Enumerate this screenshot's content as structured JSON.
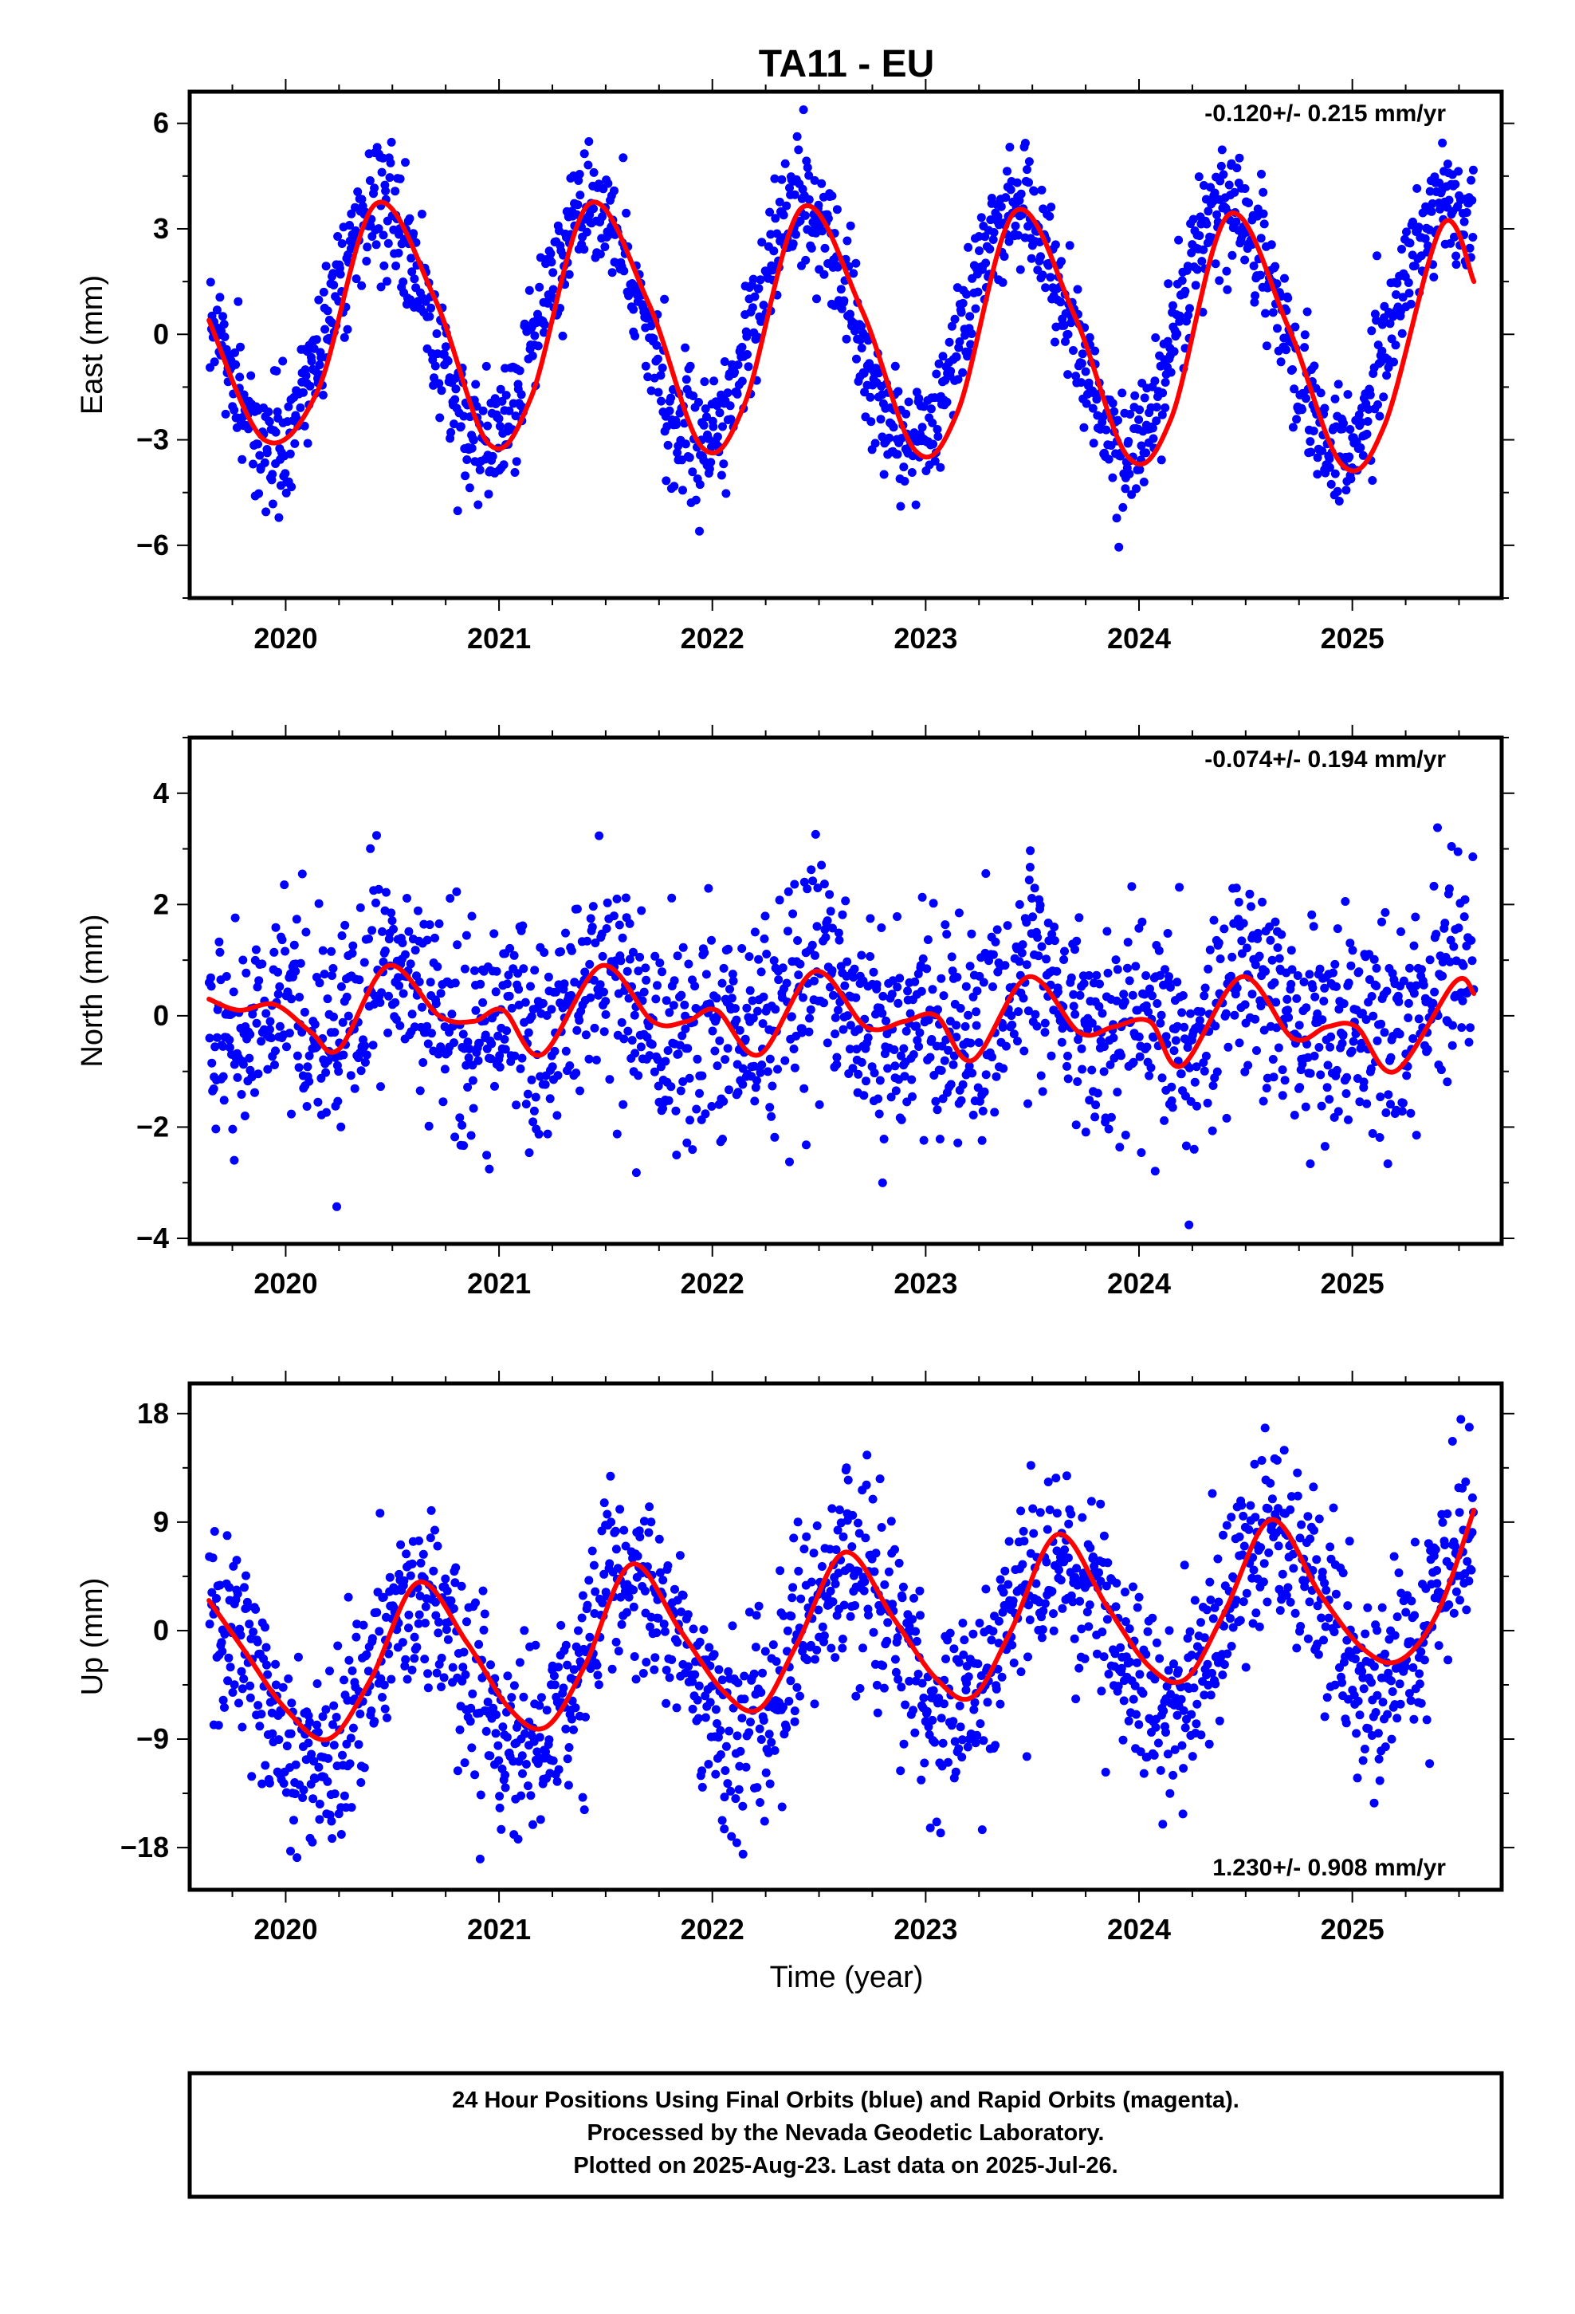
{
  "title": "TA11 - EU",
  "x_label": "Time (year)",
  "footer": [
    "24 Hour Positions Using Final Orbits (blue) and Rapid Orbits (magenta).",
    "Processed by the Nevada Geodetic Laboratory.",
    "Plotted on 2025-Aug-23. Last data on 2025-Jul-26."
  ],
  "colors": {
    "points": "#0000ff",
    "model": "#ff0000",
    "frame": "#000000"
  },
  "chart_data": [
    {
      "type": "scatter",
      "component": "east",
      "ylabel": "East (mm)",
      "rate_label": "-0.120+/- 0.215 mm/yr",
      "xlim": [
        2019.55,
        2025.7
      ],
      "ylim": [
        -7.5,
        6.9
      ],
      "x_ticks": [
        2020,
        2021,
        2022,
        2023,
        2024,
        2025
      ],
      "y_ticks": [
        6,
        3,
        0,
        -3,
        -6
      ],
      "series": [
        {
          "role": "daily positions",
          "x_range": [
            2019.64,
            2025.57
          ],
          "points_per_year": 300,
          "seasonal_model": {
            "mean": 0.2,
            "annual_amp": 3.4,
            "annual_peak": 2020.43,
            "semiannual_amp": 0.0,
            "semiannual_peak": 2020.2
          },
          "scatter_sd": 0.9
        },
        {
          "role": "model",
          "x": [
            2019.64,
            2019.9,
            2020.15,
            2020.42,
            2020.7,
            2020.95,
            2021.15,
            2021.42,
            2021.7,
            2021.95,
            2022.15,
            2022.42,
            2022.7,
            2022.95,
            2023.15,
            2023.42,
            2023.7,
            2023.95,
            2024.15,
            2024.42,
            2024.7,
            2024.95,
            2025.15,
            2025.42,
            2025.57
          ],
          "y": [
            0.4,
            -3.0,
            -1.6,
            3.7,
            1.0,
            -3.1,
            -1.8,
            3.7,
            0.9,
            -3.2,
            -2.0,
            3.6,
            0.7,
            -3.3,
            -2.2,
            3.5,
            0.5,
            -3.5,
            -2.4,
            3.4,
            0.2,
            -3.7,
            -2.6,
            3.1,
            1.5
          ]
        }
      ]
    },
    {
      "type": "scatter",
      "component": "north",
      "ylabel": "North (mm)",
      "rate_label": "-0.074+/- 0.194 mm/yr",
      "xlim": [
        2019.55,
        2025.7
      ],
      "ylim": [
        -4.1,
        5.0
      ],
      "x_ticks": [
        2020,
        2021,
        2022,
        2023,
        2024,
        2025
      ],
      "y_ticks": [
        4,
        2,
        0,
        -2,
        -4
      ],
      "series": [
        {
          "role": "daily positions",
          "x_range": [
            2019.64,
            2025.57
          ],
          "points_per_year": 300,
          "seasonal_model": {
            "mean": 0.05,
            "annual_amp": 0.45,
            "annual_peak": 2020.5,
            "semiannual_amp": 0.4,
            "semiannual_peak": 2020.0
          },
          "scatter_sd": 0.95
        },
        {
          "role": "model",
          "x": [
            2019.64,
            2019.78,
            2019.95,
            2020.12,
            2020.25,
            2020.48,
            2020.72,
            2020.88,
            2021.02,
            2021.2,
            2021.48,
            2021.72,
            2021.88,
            2022.02,
            2022.22,
            2022.48,
            2022.72,
            2022.9,
            2023.05,
            2023.22,
            2023.48,
            2023.72,
            2023.88,
            2024.05,
            2024.2,
            2024.48,
            2024.72,
            2024.88,
            2025.02,
            2025.2,
            2025.48,
            2025.57
          ],
          "y": [
            0.3,
            0.1,
            0.2,
            -0.3,
            -0.6,
            0.9,
            0.0,
            -0.1,
            0.1,
            -0.7,
            0.9,
            -0.1,
            -0.1,
            0.1,
            -0.7,
            0.8,
            -0.2,
            -0.1,
            0.0,
            -0.8,
            0.7,
            -0.3,
            -0.2,
            -0.1,
            -0.9,
            0.7,
            -0.4,
            -0.2,
            -0.2,
            -1.0,
            0.6,
            0.4
          ]
        }
      ]
    },
    {
      "type": "scatter",
      "component": "up",
      "ylabel": "Up (mm)",
      "rate_label": "1.230+/- 0.908 mm/yr",
      "xlim": [
        2019.55,
        2025.7
      ],
      "ylim": [
        -21.5,
        20.5
      ],
      "x_ticks": [
        2020,
        2021,
        2022,
        2023,
        2024,
        2025
      ],
      "y_ticks": [
        18,
        9,
        0,
        -9,
        -18
      ],
      "series": [
        {
          "role": "daily positions",
          "x_range": [
            2019.64,
            2025.57
          ],
          "points_per_year": 300,
          "seasonal_model": {
            "mean": -1.5,
            "annual_amp": 6.5,
            "annual_peak": 2020.62,
            "semiannual_amp": 0.0,
            "semiannual_peak": 2020.0
          },
          "trend_per_year": 1.23,
          "scatter_sd": 4.0
        },
        {
          "role": "model",
          "x": [
            2019.64,
            2019.8,
            2020.0,
            2020.2,
            2020.4,
            2020.62,
            2020.85,
            2021.05,
            2021.22,
            2021.4,
            2021.62,
            2021.85,
            2022.05,
            2022.22,
            2022.4,
            2022.62,
            2022.85,
            2023.05,
            2023.22,
            2023.4,
            2023.62,
            2023.85,
            2024.05,
            2024.22,
            2024.4,
            2024.62,
            2024.85,
            2025.05,
            2025.22,
            2025.4,
            2025.57
          ],
          "y": [
            2.5,
            -1.5,
            -6.5,
            -9.0,
            -4.0,
            4.0,
            -1.0,
            -6.5,
            -8.0,
            -3.0,
            5.5,
            0.0,
            -5.0,
            -6.5,
            -1.0,
            6.5,
            1.0,
            -4.0,
            -5.5,
            0.0,
            8.0,
            2.0,
            -3.0,
            -4.0,
            1.5,
            9.2,
            3.0,
            -1.5,
            -2.5,
            1.5,
            10.0
          ]
        }
      ]
    }
  ]
}
